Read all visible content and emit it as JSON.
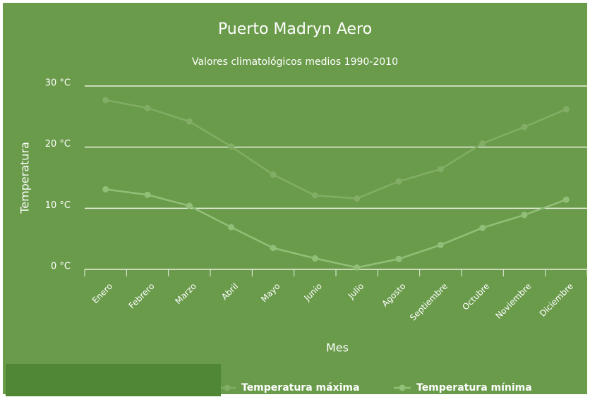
{
  "chart_data": {
    "type": "line",
    "title": "Puerto Madryn Aero",
    "subtitle": "Valores climatológicos medios 1990-2010",
    "x_label": "Mes",
    "y_label": "Temperatura",
    "categories": [
      "Enero",
      "Febrero",
      "Marzo",
      "Abril",
      "Mayo",
      "Junio",
      "Julio",
      "Agosto",
      "Septiembre",
      "Octubre",
      "Noviembre",
      "Diciembre"
    ],
    "series": [
      {
        "name": "Temperatura máxima",
        "color": "#82ad64",
        "values": [
          27.7,
          26.4,
          24.2,
          20.1,
          15.5,
          12.1,
          11.6,
          14.4,
          16.4,
          20.6,
          23.3,
          26.2
        ]
      },
      {
        "name": "Temperatura mínima",
        "color": "#92bf78",
        "values": [
          13.1,
          12.2,
          10.4,
          6.9,
          3.5,
          1.8,
          0.3,
          1.7,
          4.0,
          6.8,
          8.9,
          11.4
        ]
      }
    ],
    "ylim": [
      0,
      30
    ],
    "yticks": [
      {
        "value": 0,
        "label": "0 °C"
      },
      {
        "value": 10,
        "label": "10 °C"
      },
      {
        "value": 20,
        "label": "20 °C"
      },
      {
        "value": 30,
        "label": "30 °C"
      }
    ],
    "grid": true
  }
}
